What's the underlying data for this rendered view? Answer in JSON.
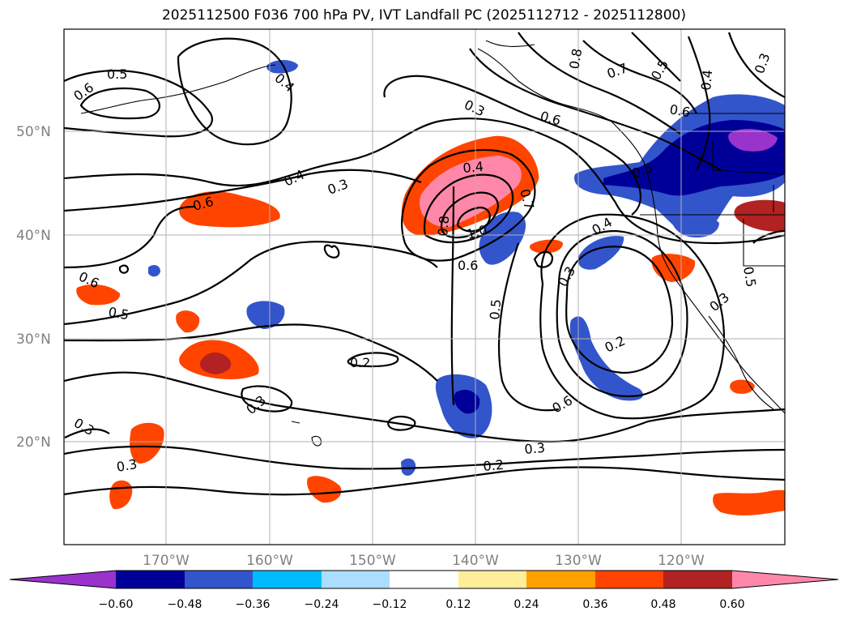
{
  "title": "2025112500 F036 700 hPa PV, IVT Landfall PC (2025112712 - 2025112800)",
  "lat_labels": [
    "50°N",
    "40°N",
    "30°N",
    "20°N"
  ],
  "lon_labels": [
    "170°W",
    "160°W",
    "150°W",
    "140°W",
    "130°W",
    "120°W"
  ],
  "colorbar": {
    "colors": [
      "#9933cc",
      "#000099",
      "#3355cc",
      "#00bbff",
      "#aaddff",
      "#ffffff",
      "#ffee99",
      "#ffa000",
      "#ff4400",
      "#b22222",
      "#ff88aa"
    ],
    "tick_labels": [
      "−0.60",
      "−0.48",
      "−0.36",
      "−0.24",
      "−0.12",
      "0.12",
      "0.24",
      "0.36",
      "0.48",
      "0.60"
    ]
  },
  "contour_labels": [
    "0.5",
    "0.6",
    "0.4",
    "0.3",
    "0.4",
    "0.3",
    "0.6",
    "0.6",
    "0.5",
    "0.2",
    "0.3",
    "0.3",
    "0.3",
    "0.4",
    "0.8",
    "1.0",
    "0.6",
    "0.5",
    "0.7",
    "0.6",
    "0.8",
    "0.7",
    "0.5",
    "0.4",
    "0.3",
    "0.6",
    "0.5",
    "0.4",
    "0.3",
    "0.2",
    "0.3",
    "0.2",
    "0.6",
    "0.3",
    "0.3",
    "0.5"
  ]
}
